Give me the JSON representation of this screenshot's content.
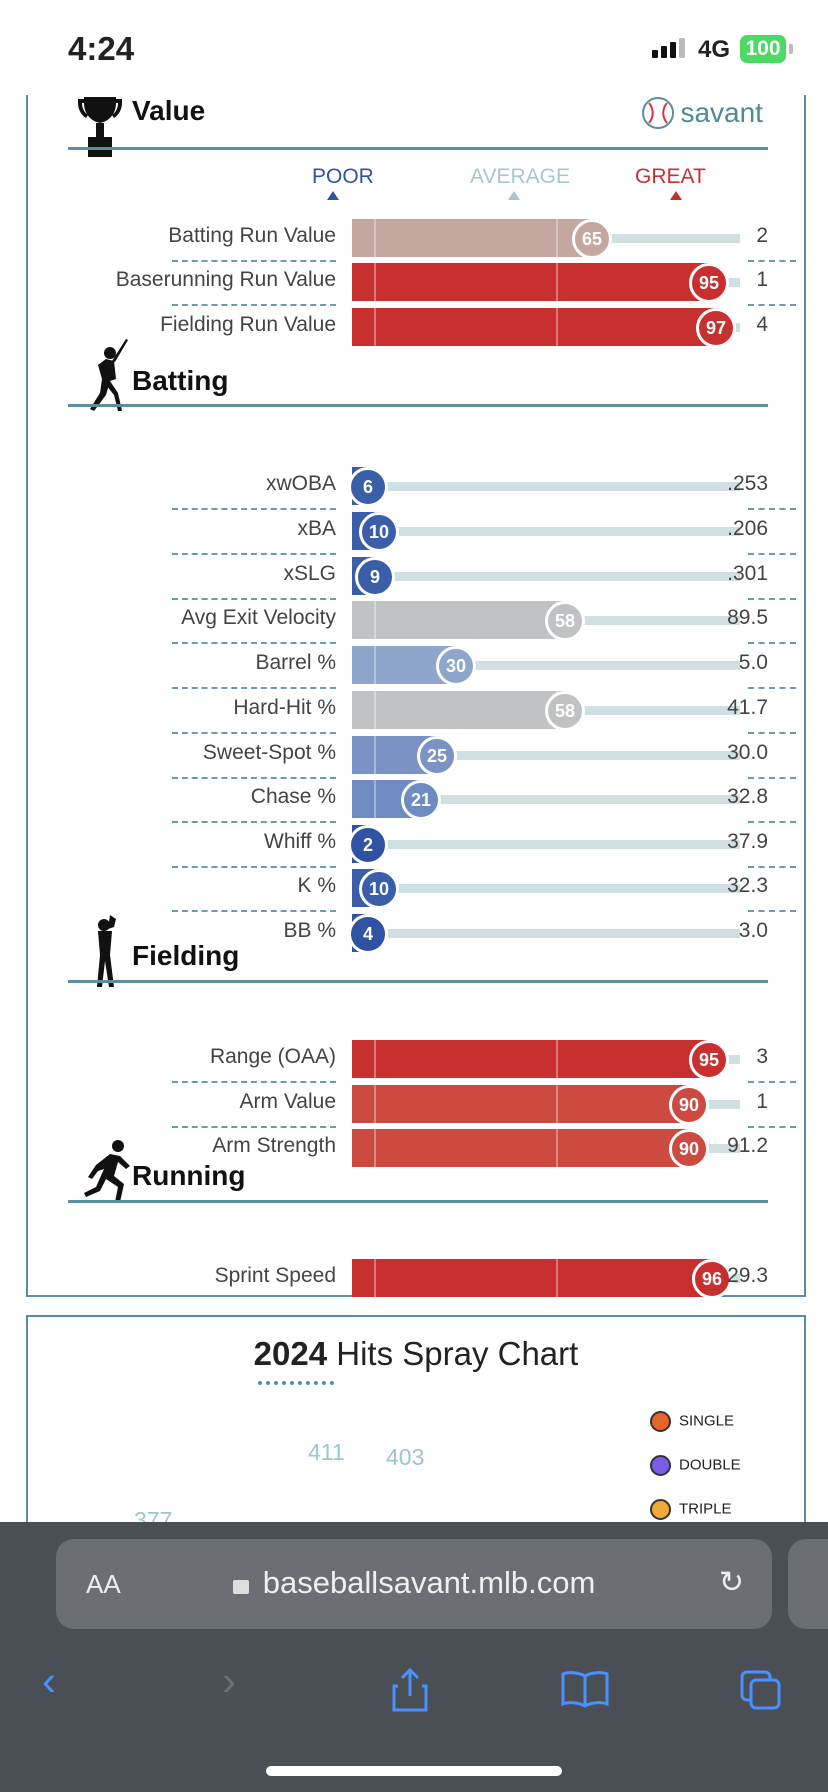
{
  "status_bar": {
    "time": "4:24",
    "network": "4G",
    "battery": "100"
  },
  "scale": {
    "poor": "POOR",
    "average": "AVERAGE",
    "great": "GREAT"
  },
  "brand": {
    "name": "savant"
  },
  "sections": {
    "value": {
      "title": "Value"
    },
    "batting": {
      "title": "Batting"
    },
    "fielding": {
      "title": "Fielding"
    },
    "running": {
      "title": "Running"
    }
  },
  "rows": [
    {
      "label": "Batting Run Value",
      "percentile": 65,
      "value": "2",
      "color": "#c4a79f"
    },
    {
      "label": "Baserunning Run Value",
      "percentile": 95,
      "value": "1",
      "color": "#c8302f"
    },
    {
      "label": "Fielding Run Value",
      "percentile": 97,
      "value": "4",
      "color": "#c8302f"
    },
    {
      "label": "xwOBA",
      "percentile": 6,
      "value": ".253",
      "color": "#3a5fa8"
    },
    {
      "label": "xBA",
      "percentile": 10,
      "value": ".206",
      "color": "#3a5fa8"
    },
    {
      "label": "xSLG",
      "percentile": 9,
      "value": ".301",
      "color": "#3a5fa8"
    },
    {
      "label": "Avg Exit Velocity",
      "percentile": 58,
      "value": "89.5",
      "color": "#c0c2c3"
    },
    {
      "label": "Barrel %",
      "percentile": 30,
      "value": "5.0",
      "color": "#8fa6cc"
    },
    {
      "label": "Hard-Hit %",
      "percentile": 58,
      "value": "41.7",
      "color": "#c0c2c3"
    },
    {
      "label": "Sweet-Spot %",
      "percentile": 25,
      "value": "30.0",
      "color": "#7a93c4"
    },
    {
      "label": "Chase %",
      "percentile": 21,
      "value": "32.8",
      "color": "#6f8bc2"
    },
    {
      "label": "Whiff %",
      "percentile": 2,
      "value": "37.9",
      "color": "#2f53a2"
    },
    {
      "label": "K %",
      "percentile": 10,
      "value": "32.3",
      "color": "#3a5fa8"
    },
    {
      "label": "BB %",
      "percentile": 4,
      "value": "3.0",
      "color": "#2f53a2"
    },
    {
      "label": "Range (OAA)",
      "percentile": 95,
      "value": "3",
      "color": "#c8302f"
    },
    {
      "label": "Arm Value",
      "percentile": 90,
      "value": "1",
      "color": "#cc4a40"
    },
    {
      "label": "Arm Strength",
      "percentile": 90,
      "value": "91.2",
      "color": "#cc4a40"
    },
    {
      "label": "Sprint Speed",
      "percentile": 96,
      "value": "29.3",
      "color": "#c8302f"
    }
  ],
  "spray_chart": {
    "title_year": "2024",
    "title_rest": " Hits Spray Chart",
    "fences": [
      "377",
      "411",
      "403"
    ],
    "legend": [
      {
        "label": "SINGLE",
        "color": "#e8622c"
      },
      {
        "label": "DOUBLE",
        "color": "#7b5ce8"
      },
      {
        "label": "TRIPLE",
        "color": "#f2a93b"
      }
    ]
  },
  "browser": {
    "aa_label": "AA",
    "url": "baseballsavant.mlb.com"
  }
}
